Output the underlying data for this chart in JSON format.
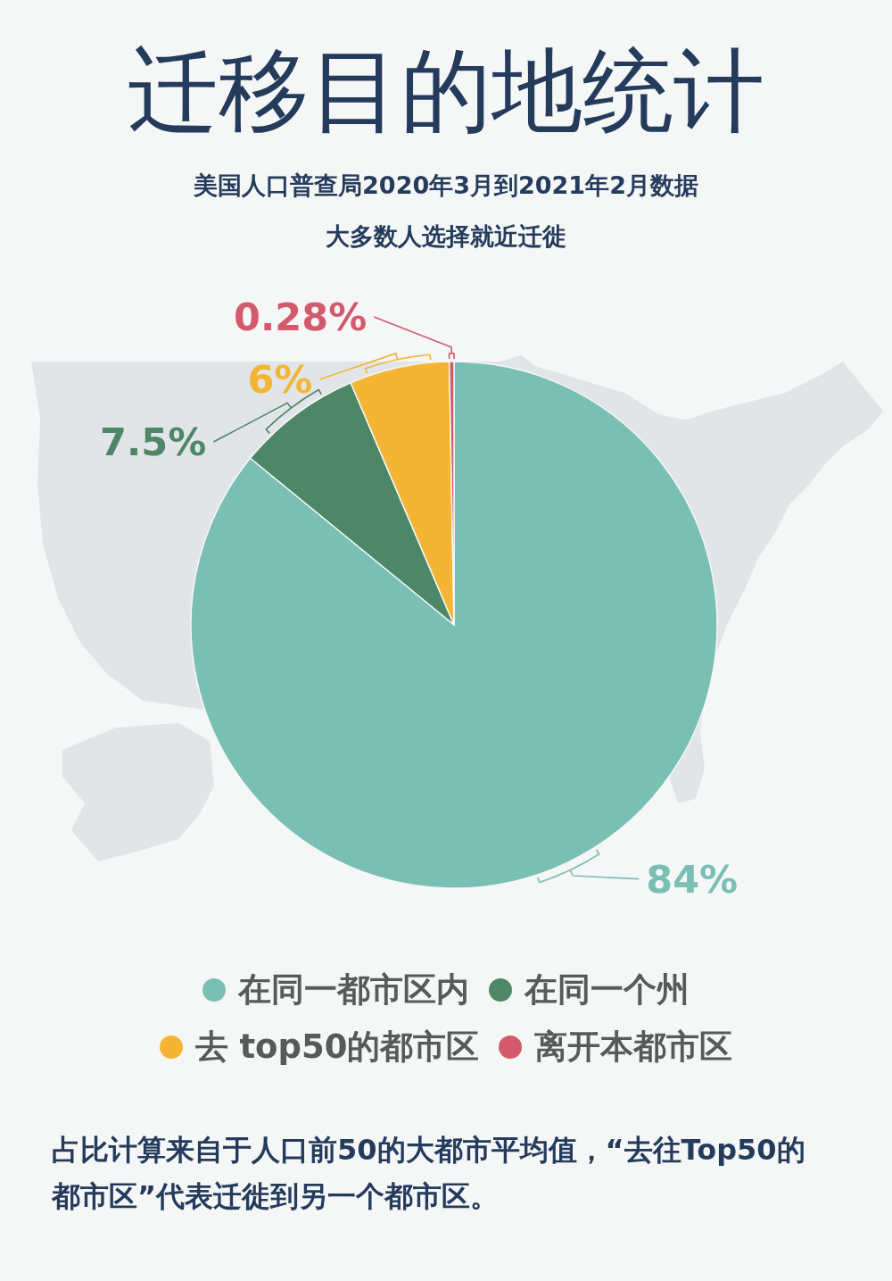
{
  "chart_data": {
    "type": "pie",
    "title": "迁移目的地统计",
    "subtitle": "美国人口普查局2020年3月到2021年2月数据",
    "annotations": [
      "大多数人选择就近迁徙",
      "占比计算来自于人口前50的大都市平均值，“去往Top50的都市区”代表迁徙到另一个都市区。"
    ],
    "categories": [
      "在同一都市区内",
      "在同一个州",
      "去 top50的都市区",
      "离开本都市区"
    ],
    "values": [
      84,
      7.5,
      6,
      0.28
    ],
    "value_labels": [
      "84%",
      "7.5%",
      "6%",
      "0.28%"
    ],
    "colors": [
      "#7abfb3",
      "#4d8767",
      "#f3b533",
      "#d3596d"
    ],
    "legend": "bottom"
  }
}
